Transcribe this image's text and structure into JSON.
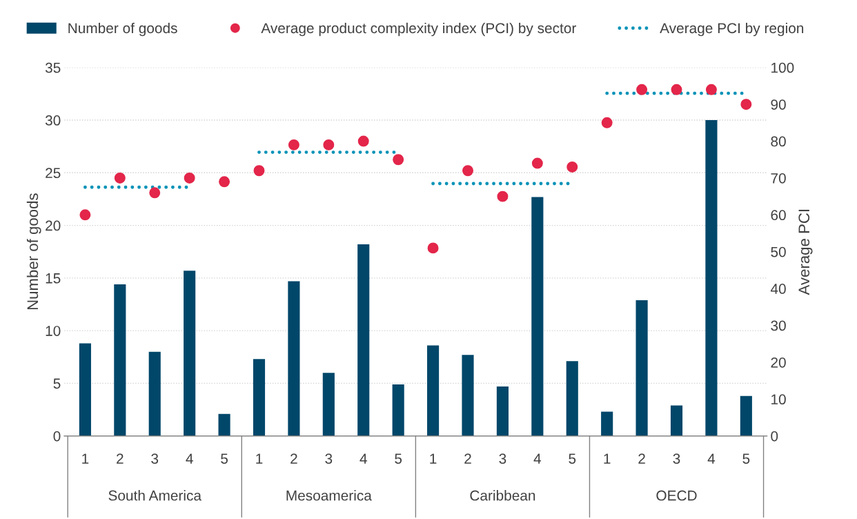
{
  "chart_data": {
    "type": "bar",
    "categories": [
      "1",
      "2",
      "3",
      "4",
      "5",
      "1",
      "2",
      "3",
      "4",
      "5",
      "1",
      "2",
      "3",
      "4",
      "5",
      "1",
      "2",
      "3",
      "4",
      "5"
    ],
    "series": [
      {
        "name": "Number of goods",
        "color": "#01476a",
        "values": [
          8.8,
          14.4,
          8.0,
          15.7,
          2.1,
          7.3,
          14.7,
          6.0,
          18.2,
          4.9,
          8.6,
          7.7,
          4.7,
          22.7,
          7.1,
          2.3,
          12.9,
          2.9,
          30.0,
          3.8
        ]
      },
      {
        "name": "Average product complexity index (PCI) by sector",
        "type": "scatter",
        "axis": "y2",
        "color": "#e3264a",
        "marker": "circle",
        "values": [
          60,
          70,
          66,
          70,
          69,
          72,
          79,
          79,
          80,
          75,
          51,
          72,
          65,
          74,
          73,
          85,
          94,
          94,
          94,
          90
        ]
      },
      {
        "name": "Average PCI by region",
        "type": "line",
        "axis": "y2",
        "color": "#0b93b8",
        "line_style": "dotted",
        "marker": "none",
        "values": [
          67.5,
          67.5,
          67.5,
          67.5,
          null,
          null,
          null,
          null,
          null,
          null,
          null,
          null,
          null,
          null,
          null,
          null,
          null,
          null,
          null,
          null
        ]
      },
      {
        "type": "line",
        "axis": "y2",
        "color": "#0b93b8",
        "line_style": "dotted",
        "marker": "none",
        "values": [
          null,
          null,
          null,
          null,
          null,
          77,
          77,
          77,
          77,
          77,
          null,
          null,
          null,
          null,
          null,
          null,
          null,
          null,
          null,
          null
        ]
      },
      {
        "type": "line",
        "axis": "y2",
        "color": "#0b93b8",
        "line_style": "dotted",
        "marker": "none",
        "values": [
          null,
          null,
          null,
          null,
          null,
          null,
          null,
          null,
          null,
          null,
          68.5,
          68.5,
          68.5,
          68.5,
          68.5,
          null,
          null,
          null,
          null,
          null
        ]
      },
      {
        "type": "line",
        "axis": "y2",
        "color": "#0b93b8",
        "line_style": "dotted",
        "marker": "none",
        "values": [
          null,
          null,
          null,
          null,
          null,
          null,
          null,
          null,
          null,
          null,
          null,
          null,
          null,
          null,
          null,
          93,
          93,
          93,
          93,
          93
        ]
      }
    ],
    "ylabel": "Number of goods",
    "y2label": "Average PCI",
    "ylim": [
      0,
      35
    ],
    "yticks": [
      0,
      5,
      10,
      15,
      20,
      25,
      30,
      35
    ],
    "y2lim": [
      0,
      100
    ],
    "y2ticks": [
      0,
      10,
      20,
      30,
      40,
      50,
      60,
      70,
      80,
      90,
      100
    ],
    "annotations": [
      "South America",
      "Mesoamerica",
      "Caribbean",
      "OECD"
    ],
    "grid": "y",
    "legend": "top"
  }
}
